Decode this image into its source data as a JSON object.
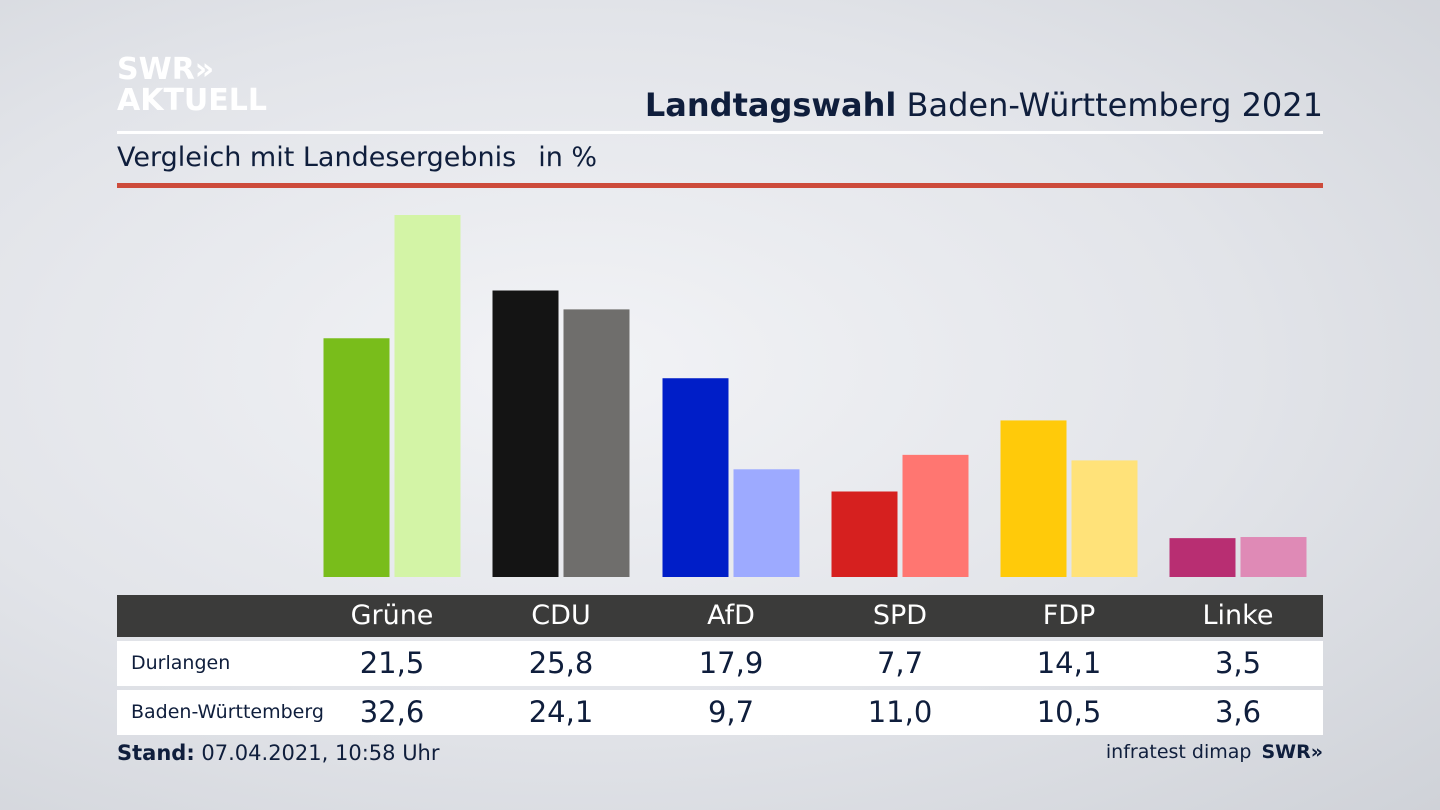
{
  "logo": {
    "line1": "SWR»",
    "line2": "AKTUELL"
  },
  "header": {
    "title_bold": "Landtagswahl",
    "title_rest": "Baden-Württemberg 2021"
  },
  "subtitle": {
    "text": "Vergleich mit Landesergebnis",
    "unit": "in %"
  },
  "colors": {
    "accent_rule": "#cd4b3b",
    "table_header_bg": "#3b3b3a"
  },
  "table": {
    "headers": [
      "Grüne",
      "CDU",
      "AfD",
      "SPD",
      "FDP",
      "Linke"
    ],
    "rows": [
      {
        "label": "Durlangen",
        "values": [
          "21,5",
          "25,8",
          "17,9",
          "7,7",
          "14,1",
          "3,5"
        ]
      },
      {
        "label": "Baden-Württemberg",
        "values": [
          "32,6",
          "24,1",
          "9,7",
          "11,0",
          "10,5",
          "3,6"
        ]
      }
    ]
  },
  "footer": {
    "stand_label": "Stand:",
    "stand_value": "07.04.2021, 10:58 Uhr",
    "source": "infratest dimap",
    "brand": "SWR»"
  },
  "chart_data": {
    "type": "bar",
    "categories": [
      "Grüne",
      "CDU",
      "AfD",
      "SPD",
      "FDP",
      "Linke"
    ],
    "series": [
      {
        "name": "Durlangen",
        "values": [
          21.5,
          25.8,
          17.9,
          7.7,
          14.1,
          3.5
        ],
        "colors": [
          "#79bd1b",
          "#141414",
          "#001ec8",
          "#d6201f",
          "#ffca0a",
          "#b82e72"
        ]
      },
      {
        "name": "Baden-Württemberg",
        "values": [
          32.6,
          24.1,
          9.7,
          11.0,
          10.5,
          3.6
        ],
        "colors": [
          "#d3f4a6",
          "#6f6e6c",
          "#9daaff",
          "#ff7671",
          "#ffe279",
          "#df8ab6"
        ]
      }
    ],
    "ylim": [
      0,
      32.6
    ],
    "grid": false,
    "legend": "table-below"
  }
}
